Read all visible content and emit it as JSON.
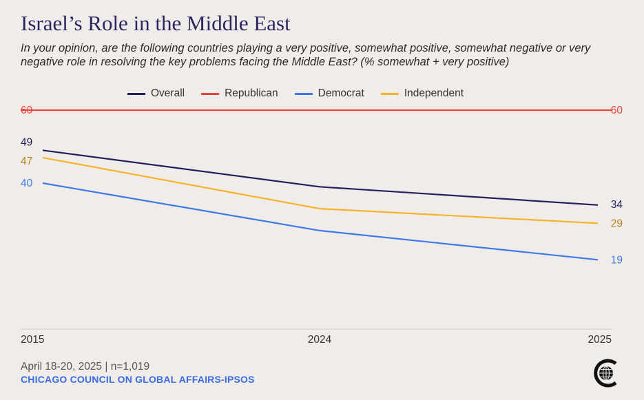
{
  "title": "Israel’s Role in the Middle East",
  "subtitle": "In your opinion, are the following countries playing a very positive, somewhat positive, somewhat negative or very negative role in resolving the key problems facing the Middle East? (% somewhat + very positive)",
  "footer": {
    "date": "April 18-20, 2025 | n=1,019",
    "source": "CHICAGO COUNCIL ON GLOBAL AFFAIRS-IPSOS"
  },
  "logo_icon": "chicago-council-globe-icon",
  "chart_data": {
    "type": "line",
    "x": [
      "2015",
      "2024",
      "2025"
    ],
    "ylim": [
      0,
      65
    ],
    "grid": false,
    "legend_position": "top",
    "series": [
      {
        "name": "Overall",
        "color": "#241f5c",
        "values": [
          49,
          39,
          34
        ],
        "labels": [
          "49",
          "",
          "34"
        ]
      },
      {
        "name": "Republican",
        "color": "#e8433f",
        "values": [
          60,
          60,
          60
        ],
        "labels": [
          "60",
          "",
          "60"
        ]
      },
      {
        "name": "Democrat",
        "color": "#3f79e8",
        "values": [
          40,
          27,
          19
        ],
        "labels": [
          "40",
          "",
          "19"
        ]
      },
      {
        "name": "Independent",
        "color": "#f5b428",
        "values": [
          47,
          33,
          29
        ],
        "labels": [
          "47",
          "",
          "29"
        ]
      }
    ],
    "label_colors": {
      "Overall": "#241f5c",
      "Republican": "#e8433f",
      "Democrat": "#3f79e8",
      "Independent": "#b87f1a"
    }
  }
}
